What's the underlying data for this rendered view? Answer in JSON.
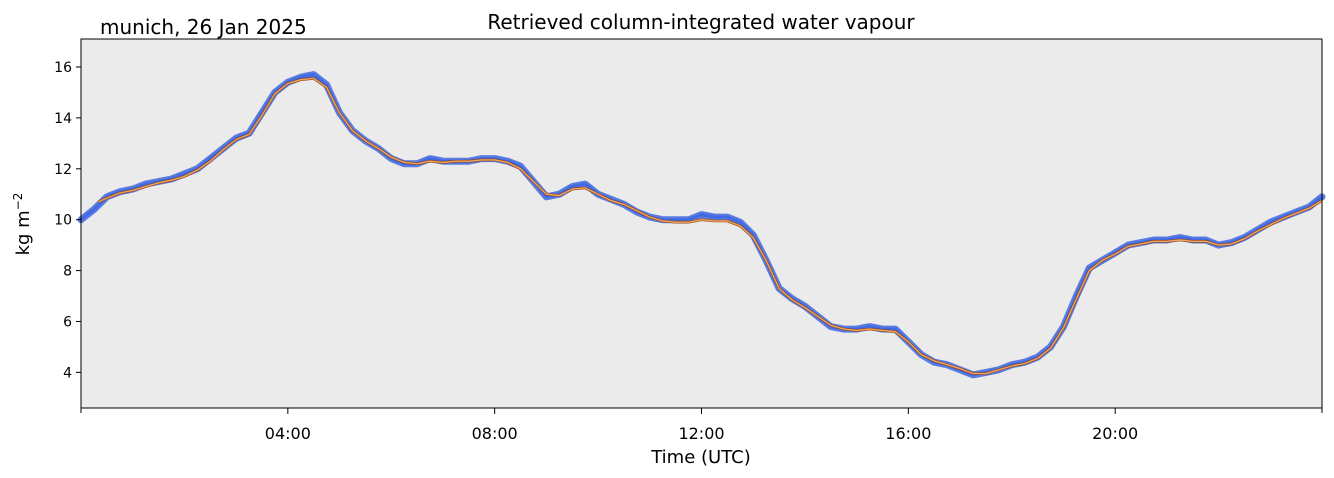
{
  "chart_data": {
    "type": "line",
    "title": "Retrieved column-integrated water vapour",
    "location_label": "munich, 26 Jan 2025",
    "xlabel": "Time (UTC)",
    "ylabel": "kg m",
    "ylabel_superscript": "−2",
    "xlim": [
      0,
      24
    ],
    "ylim": [
      2.6,
      17.1
    ],
    "x_ticks": [
      {
        "value": 4,
        "label": "04:00"
      },
      {
        "value": 8,
        "label": "08:00"
      },
      {
        "value": 12,
        "label": "12:00"
      },
      {
        "value": 16,
        "label": "16:00"
      },
      {
        "value": 20,
        "label": "20:00"
      }
    ],
    "x_minor_ticks": [
      0,
      24
    ],
    "y_ticks": [
      4,
      6,
      8,
      10,
      12,
      14,
      16
    ],
    "grid": false,
    "legend": "none",
    "colors": {
      "background": "#ebebeb",
      "raw_series": "#4169e1",
      "smoothed_series": "#f4a460",
      "smoothed_outline": "#8b4513"
    },
    "series": [
      {
        "role": "raw",
        "x": [
          0,
          0.25,
          0.5,
          0.75,
          1,
          1.25,
          1.5,
          1.75,
          2,
          2.25,
          2.5,
          2.75,
          3,
          3.25,
          3.5,
          3.75,
          4,
          4.25,
          4.5,
          4.75,
          5,
          5.25,
          5.5,
          5.75,
          6,
          6.25,
          6.5,
          6.75,
          7,
          7.25,
          7.5,
          7.75,
          8,
          8.25,
          8.5,
          8.75,
          9,
          9.25,
          9.5,
          9.75,
          10,
          10.25,
          10.5,
          10.75,
          11,
          11.25,
          11.5,
          11.75,
          12,
          12.25,
          12.5,
          12.75,
          13,
          13.25,
          13.5,
          13.75,
          14,
          14.25,
          14.5,
          14.75,
          15,
          15.25,
          15.5,
          15.75,
          16,
          16.25,
          16.5,
          16.75,
          17,
          17.25,
          17.5,
          17.75,
          18,
          18.25,
          18.5,
          18.75,
          19,
          19.25,
          19.5,
          19.75,
          20,
          20.25,
          20.5,
          20.75,
          21,
          21.25,
          21.5,
          21.75,
          22,
          22.25,
          22.5,
          22.75,
          23,
          23.25,
          23.5,
          23.75,
          24
        ],
        "y": [
          10.0,
          10.4,
          10.9,
          11.1,
          11.2,
          11.4,
          11.5,
          11.6,
          11.8,
          12.0,
          12.4,
          12.8,
          13.2,
          13.4,
          14.2,
          15.0,
          15.4,
          15.6,
          15.7,
          15.3,
          14.2,
          13.5,
          13.1,
          12.8,
          12.4,
          12.2,
          12.2,
          12.4,
          12.3,
          12.3,
          12.3,
          12.4,
          12.4,
          12.3,
          12.1,
          11.5,
          10.9,
          11.0,
          11.3,
          11.4,
          11.0,
          10.8,
          10.6,
          10.3,
          10.1,
          10.0,
          10.0,
          10.0,
          10.2,
          10.1,
          10.1,
          9.9,
          9.4,
          8.4,
          7.3,
          6.9,
          6.6,
          6.2,
          5.8,
          5.7,
          5.7,
          5.8,
          5.7,
          5.7,
          5.2,
          4.7,
          4.4,
          4.3,
          4.1,
          3.9,
          4.0,
          4.1,
          4.3,
          4.4,
          4.6,
          5.0,
          5.8,
          7.0,
          8.1,
          8.4,
          8.7,
          9.0,
          9.1,
          9.2,
          9.2,
          9.3,
          9.2,
          9.2,
          9.0,
          9.1,
          9.3,
          9.6,
          9.9,
          10.1,
          10.3,
          10.5,
          10.9
        ]
      },
      {
        "role": "smoothed",
        "x": [
          0.33,
          0.5,
          0.75,
          1,
          1.25,
          1.5,
          1.75,
          2,
          2.25,
          2.5,
          2.75,
          3,
          3.25,
          3.5,
          3.75,
          4,
          4.25,
          4.5,
          4.75,
          5,
          5.25,
          5.5,
          5.75,
          6,
          6.25,
          6.5,
          6.75,
          7,
          7.25,
          7.5,
          7.75,
          8,
          8.25,
          8.5,
          8.75,
          9,
          9.25,
          9.5,
          9.75,
          10,
          10.25,
          10.5,
          10.75,
          11,
          11.25,
          11.5,
          11.75,
          12,
          12.25,
          12.5,
          12.75,
          13,
          13.25,
          13.5,
          13.75,
          14,
          14.25,
          14.5,
          14.75,
          15,
          15.25,
          15.5,
          15.75,
          16,
          16.25,
          16.5,
          16.75,
          17,
          17.25,
          17.5,
          17.75,
          18,
          18.25,
          18.5,
          18.75,
          19,
          19.25,
          19.5,
          19.75,
          20,
          20.25,
          20.5,
          20.75,
          21,
          21.25,
          21.5,
          21.75,
          22,
          22.25,
          22.5,
          22.75,
          23,
          23.25,
          23.5,
          23.75,
          24
        ],
        "y": [
          10.7,
          10.85,
          11.05,
          11.15,
          11.3,
          11.45,
          11.55,
          11.7,
          11.95,
          12.3,
          12.75,
          13.15,
          13.35,
          14.1,
          14.95,
          15.35,
          15.5,
          15.55,
          15.2,
          14.2,
          13.5,
          13.1,
          12.8,
          12.45,
          12.25,
          12.2,
          12.3,
          12.25,
          12.3,
          12.3,
          12.35,
          12.35,
          12.25,
          12.0,
          11.5,
          11.0,
          10.95,
          11.2,
          11.25,
          11.0,
          10.75,
          10.6,
          10.35,
          10.1,
          9.95,
          9.9,
          9.9,
          10.0,
          9.95,
          9.95,
          9.75,
          9.3,
          8.4,
          7.3,
          6.85,
          6.55,
          6.2,
          5.85,
          5.7,
          5.65,
          5.7,
          5.65,
          5.6,
          5.2,
          4.7,
          4.45,
          4.3,
          4.15,
          3.95,
          3.95,
          4.1,
          4.25,
          4.35,
          4.55,
          4.95,
          5.75,
          6.9,
          8.0,
          8.4,
          8.65,
          8.95,
          9.05,
          9.15,
          9.15,
          9.2,
          9.15,
          9.15,
          9.0,
          9.05,
          9.25,
          9.55,
          9.8,
          10.05,
          10.25,
          10.45,
          10.75
        ]
      }
    ]
  }
}
